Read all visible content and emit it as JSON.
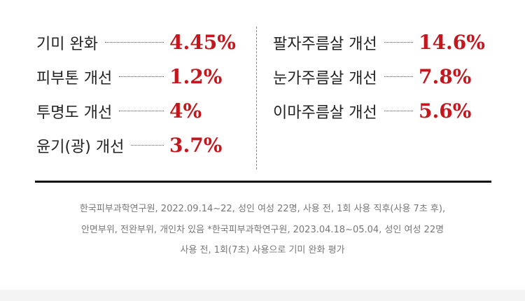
{
  "left": [
    {
      "label": "기미 완화",
      "value": "4.45%"
    },
    {
      "label": "피부톤 개선",
      "value": "1.2%"
    },
    {
      "label": "투명도 개선",
      "value": "4%"
    },
    {
      "label": "윤기(광) 개선",
      "value": "3.7%"
    }
  ],
  "right": [
    {
      "label": "팔자주름살 개선",
      "value": "14.6%"
    },
    {
      "label": "눈가주름살 개선",
      "value": "7.8%"
    },
    {
      "label": "이마주름살 개선",
      "value": "5.6%"
    }
  ],
  "footnote": [
    "한국피부과학연구원, 2022.09.14~22, 성인 여성 22명, 사용 전, 1회 사용 직후(사용 7초 후),",
    "안면부위, 전완부위, 개인차 있음 *한국피부과학연구원, 2023.04.18~05.04, 성인 여성 22명",
    "사용 전, 1회(7초) 사용으로 기미 완화 평가"
  ]
}
